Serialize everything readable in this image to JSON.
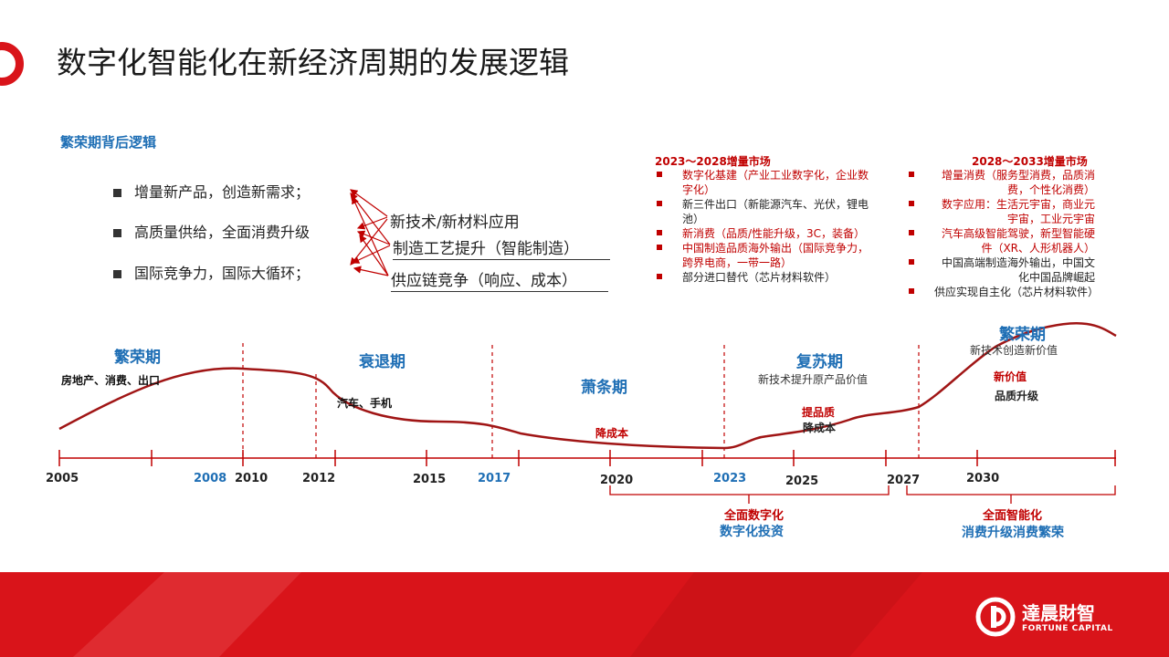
{
  "title": "数字化智能化在新经济周期的发展逻辑",
  "left_panel": {
    "heading": "繁荣期背后逻辑",
    "items": [
      "增量新产品，创造新需求；",
      "高质量供给，全面消费升级",
      "国际竞争力，国际大循环；"
    ],
    "drivers": [
      "新技术/新材料应用",
      "制造工艺提升（智能制造）",
      "供应链竞争（响应、成本）"
    ]
  },
  "market_2023": {
    "title": "2023～2028增量市场",
    "items": [
      {
        "text": "数字化基建（产业工业数字化，企业数字化）",
        "color": "red"
      },
      {
        "text": "新三件出口（新能源汽车、光伏，锂电池）",
        "color": "dark"
      },
      {
        "text": "新消费（品质/性能升级，3C，装备）",
        "color": "red"
      },
      {
        "text": "中国制造品质海外输出（国际竞争力，跨界电商，一带一路）",
        "color": "red"
      },
      {
        "text": "部分进口替代（芯片材料软件）",
        "color": "dark"
      }
    ]
  },
  "market_2028": {
    "title": "2028～2033增量市场",
    "items": [
      {
        "text": "增量消费（服务型消费，品质消费，个性化消费）",
        "color": "red"
      },
      {
        "text": "数字应用：生活元宇宙，商业元宇宙，工业元宇宙",
        "color": "red"
      },
      {
        "text": "汽车高级智能驾驶，新型智能硬件（XR、人形机器人）",
        "color": "red"
      },
      {
        "text": "中国高端制造海外输出，中国文化中国品牌崛起",
        "color": "dark"
      },
      {
        "text": "供应实现自主化（芯片材料软件）",
        "color": "dark"
      }
    ]
  },
  "phases": {
    "p1": "繁荣期",
    "p2": "衰退期",
    "p3": "萧条期",
    "p4": "复苏期",
    "p5": "繁荣期"
  },
  "annotations": {
    "a1": "房地产、消费、出口",
    "a2": "汽车、手机",
    "a3": "降成本",
    "a4": "新技术提升原产品价值",
    "a5": "提品质",
    "a6": "降成本",
    "a7": "新技术创造新价值",
    "a8": "新价值",
    "a9": "品质升级"
  },
  "years": [
    {
      "label": "2005",
      "color": "#222222"
    },
    {
      "label": "2008",
      "color": "#1f6fb5"
    },
    {
      "label": "2010",
      "color": "#222222"
    },
    {
      "label": "2012",
      "color": "#222222"
    },
    {
      "label": "2015",
      "color": "#222222"
    },
    {
      "label": "2017",
      "color": "#1f6fb5"
    },
    {
      "label": "2020",
      "color": "#222222"
    },
    {
      "label": "2023",
      "color": "#1f6fb5"
    },
    {
      "label": "2025",
      "color": "#222222"
    },
    {
      "label": "2027",
      "color": "#222222"
    },
    {
      "label": "2030",
      "color": "#222222"
    }
  ],
  "brackets": {
    "b1_line1": "全面数字化",
    "b1_line2": "数字化投资",
    "b2_line1": "全面智能化",
    "b2_line2": "消费升级消费繁荣"
  },
  "brand": {
    "cn": "達晨財智",
    "en": "FORTUNE CAPITAL"
  },
  "colors": {
    "accent": "#d9141a",
    "curve": "#a01515",
    "blue": "#1f6fb5"
  }
}
